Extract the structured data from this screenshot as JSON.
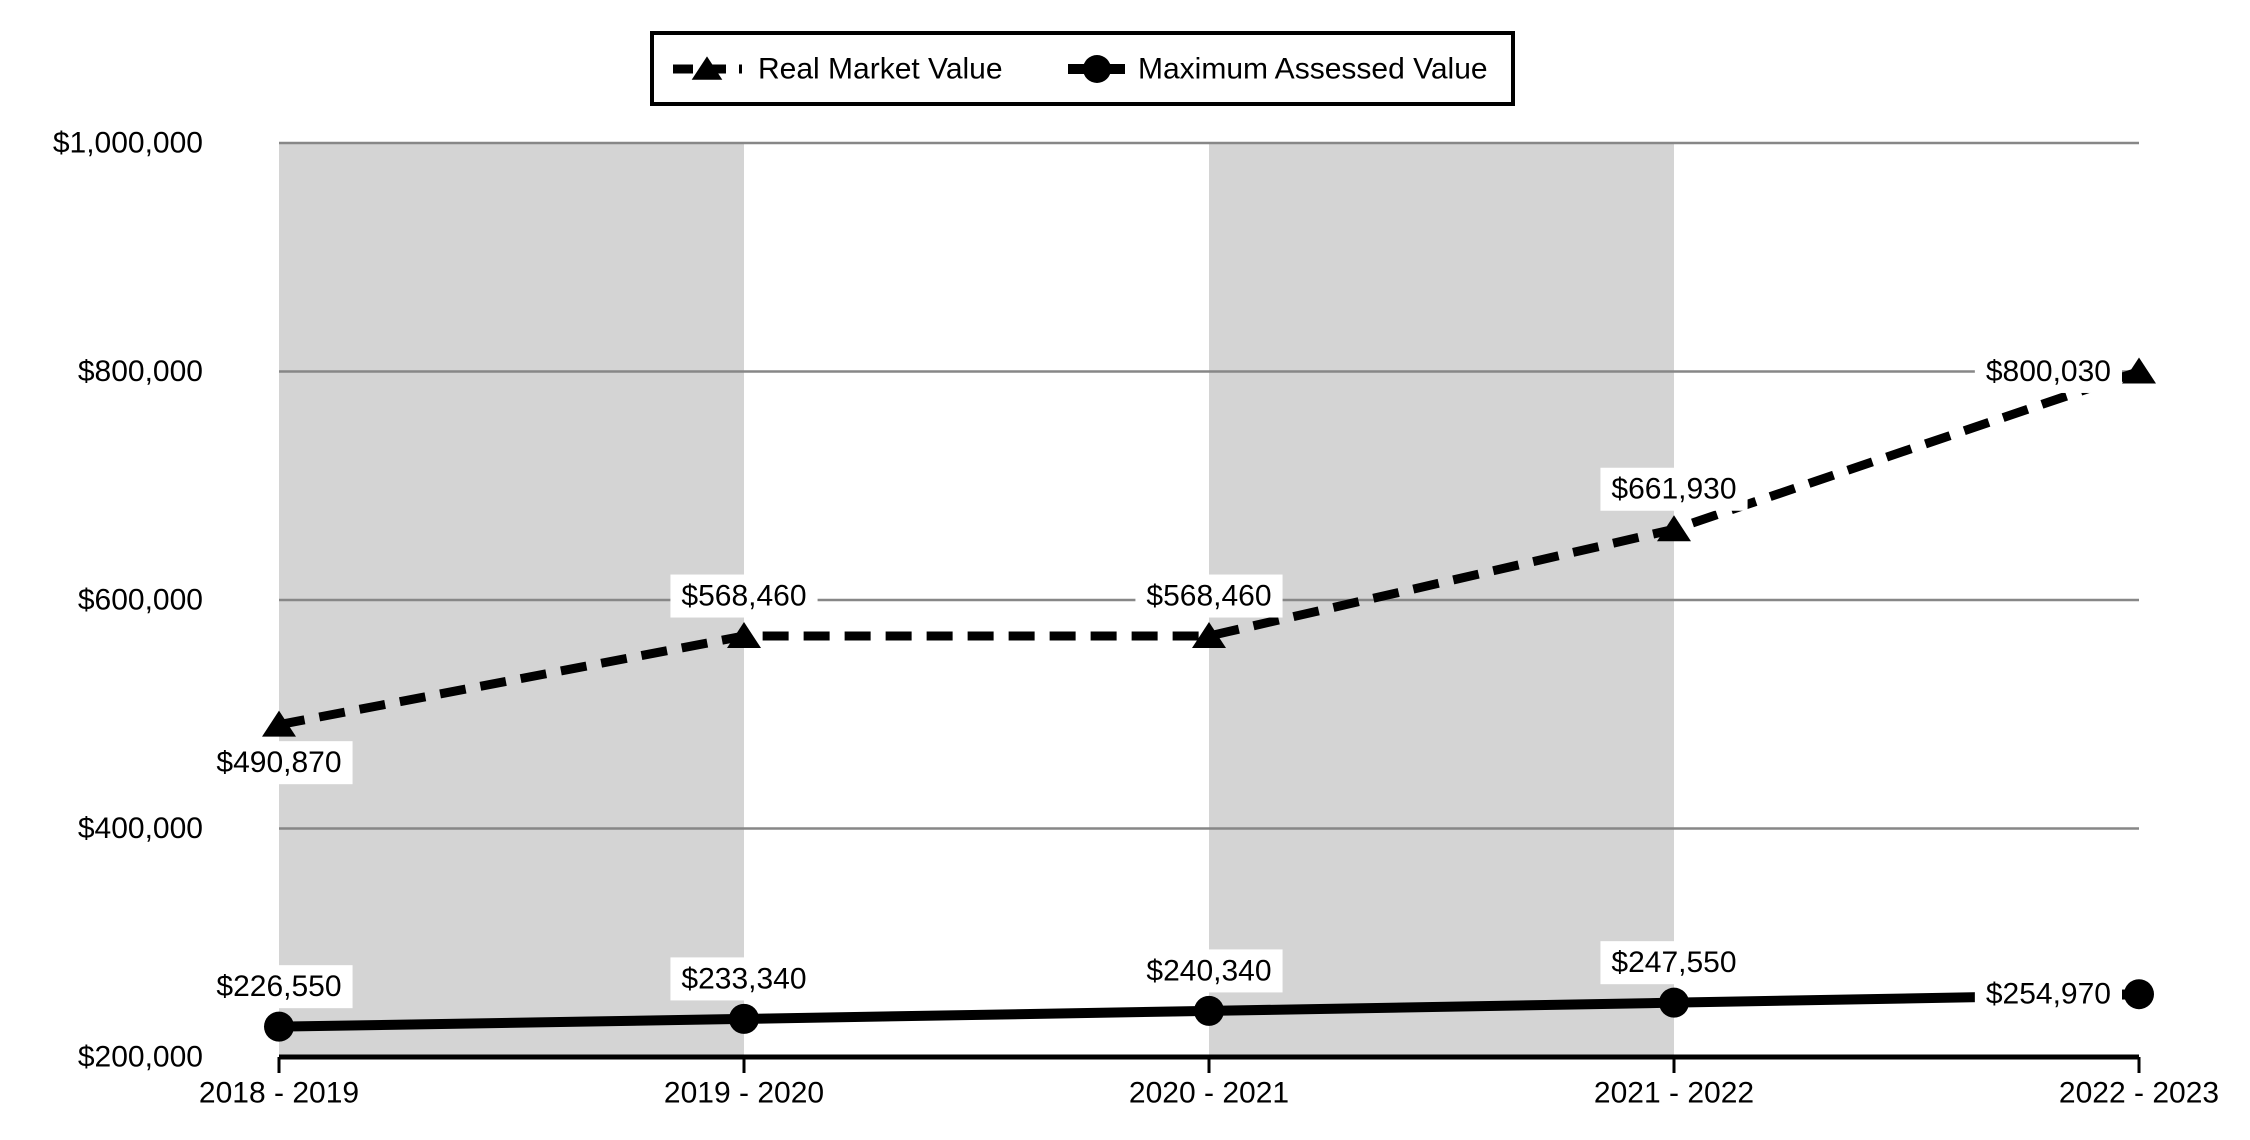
{
  "chart_data": {
    "type": "line",
    "title": "",
    "categories": [
      "2018 - 2019",
      "2019 - 2020",
      "2020 - 2021",
      "2021 - 2022",
      "2022 - 2023"
    ],
    "series": [
      {
        "name": "Real Market Value",
        "line_style": "dashed",
        "marker": "triangle",
        "values": [
          490870,
          568460,
          568460,
          661930,
          800030
        ],
        "labels": [
          "$490,870",
          "$568,460",
          "$568,460",
          "$661,930",
          "$800,030"
        ],
        "label_positions": [
          "below",
          "above",
          "above",
          "above",
          "left"
        ]
      },
      {
        "name": "Maximum Assessed Value",
        "line_style": "solid",
        "marker": "circle",
        "values": [
          226550,
          233340,
          240340,
          247550,
          254970
        ],
        "labels": [
          "$226,550",
          "$233,340",
          "$240,340",
          "$247,550",
          "$254,970"
        ],
        "label_positions": [
          "above",
          "above",
          "above",
          "above",
          "left"
        ]
      }
    ],
    "y_axis": {
      "min": 200000,
      "max": 1000000,
      "tick_step": 200000,
      "tick_labels": [
        "$200,000",
        "$400,000",
        "$600,000",
        "$800,000",
        "$1,000,000"
      ]
    },
    "x_axis": {
      "tick_labels": [
        "2018 - 2019",
        "2019 - 2020",
        "2020 - 2021",
        "2021 - 2022",
        "2022 - 2023"
      ]
    },
    "legend_position": "top",
    "grid": "horizontal",
    "shaded_column_intervals": [
      0,
      2
    ],
    "colors": {
      "band": "#d4d4d4",
      "gridline": "#878787",
      "series": "#000000",
      "axis": "#000000",
      "label_bg": "#ffffff",
      "background": "#ffffff"
    }
  }
}
